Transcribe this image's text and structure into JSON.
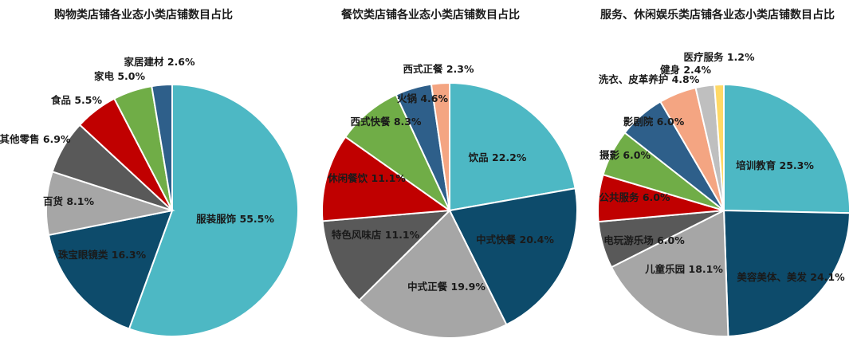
{
  "charts": [
    {
      "title": "购物类店铺各业态小类店铺数目占比",
      "chart_data": {
        "type": "pie",
        "slices": [
          {
            "label": "服装服饰 55.5%",
            "name": "服装服饰",
            "value": 55.5,
            "color": "#4db8c4"
          },
          {
            "label": "珠宝眼镜类 16.3%",
            "name": "珠宝眼镜类",
            "value": 16.3,
            "color": "#0d4b6b"
          },
          {
            "label": "百货 8.1%",
            "name": "百货",
            "value": 8.1,
            "color": "#a6a6a6"
          },
          {
            "label": "其他零售 6.9%",
            "name": "其他零售",
            "value": 6.9,
            "color": "#595959"
          },
          {
            "label": "食品 5.5%",
            "name": "食品",
            "value": 5.5,
            "color": "#c00000"
          },
          {
            "label": "家电 5.0%",
            "name": "家电",
            "value": 5.0,
            "color": "#70ad47"
          },
          {
            "label": "家居建材 2.6%",
            "name": "家居建材",
            "value": 2.6,
            "color": "#2e5f8a"
          }
        ]
      }
    },
    {
      "title": "餐饮类店铺各业态小类店铺数目占比",
      "chart_data": {
        "type": "pie",
        "slices": [
          {
            "label": "饮品 22.2%",
            "name": "饮品",
            "value": 22.2,
            "color": "#4db8c4"
          },
          {
            "label": "中式快餐 20.4%",
            "name": "中式快餐",
            "value": 20.4,
            "color": "#0d4b6b"
          },
          {
            "label": "中式正餐 19.9%",
            "name": "中式正餐",
            "value": 19.9,
            "color": "#a6a6a6"
          },
          {
            "label": "特色风味店 11.1%",
            "name": "特色风味店",
            "value": 11.1,
            "color": "#595959"
          },
          {
            "label": "休闲餐饮 11.1%",
            "name": "休闲餐饮",
            "value": 11.1,
            "color": "#c00000"
          },
          {
            "label": "西式快餐 8.3%",
            "name": "西式快餐",
            "value": 8.3,
            "color": "#70ad47"
          },
          {
            "label": "火锅 4.6%",
            "name": "火锅",
            "value": 4.6,
            "color": "#2e5f8a"
          },
          {
            "label": "西式正餐 2.3%",
            "name": "西式正餐",
            "value": 2.3,
            "color": "#f4a582"
          }
        ]
      }
    },
    {
      "title": "服务、休闲娱乐类店铺各业态小类店铺数目占比",
      "chart_data": {
        "type": "pie",
        "slices": [
          {
            "label": "培训教育 25.3%",
            "name": "培训教育",
            "value": 25.3,
            "color": "#4db8c4"
          },
          {
            "label": "美容美体、美发 24.1%",
            "name": "美容美体、美发",
            "value": 24.1,
            "color": "#0d4b6b"
          },
          {
            "label": "儿童乐园 18.1%",
            "name": "儿童乐园",
            "value": 18.1,
            "color": "#a6a6a6"
          },
          {
            "label": "电玩游乐场 6.0%",
            "name": "电玩游乐场",
            "value": 6.0,
            "color": "#595959"
          },
          {
            "label": "公共服务 6.0%",
            "name": "公共服务",
            "value": 6.0,
            "color": "#c00000"
          },
          {
            "label": "摄影 6.0%",
            "name": "摄影",
            "value": 6.0,
            "color": "#70ad47"
          },
          {
            "label": "影剧院 6.0%",
            "name": "影剧院",
            "value": 6.0,
            "color": "#2e5f8a"
          },
          {
            "label": "洗衣、皮革养护 4.8%",
            "name": "洗衣、皮革养护",
            "value": 4.8,
            "color": "#f4a582"
          },
          {
            "label": "健身 2.4%",
            "name": "健身",
            "value": 2.4,
            "color": "#bfbfbf"
          },
          {
            "label": "医疗服务 1.2%",
            "name": "医疗服务",
            "value": 1.2,
            "color": "#ffd966"
          }
        ]
      }
    }
  ]
}
